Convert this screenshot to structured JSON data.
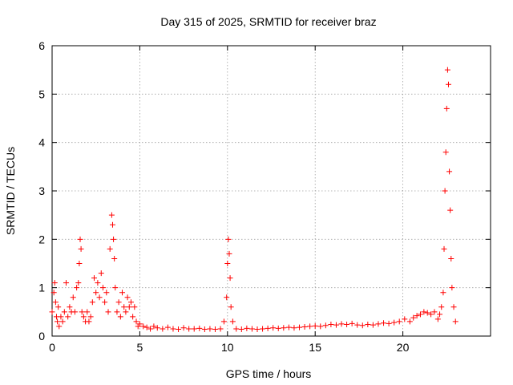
{
  "chart_data": {
    "type": "scatter",
    "title": "Day 315 of 2025, SRMTID for receiver braz",
    "xlabel": "GPS time / hours",
    "ylabel": "SRMTID / TECUs",
    "xlim": [
      0,
      25
    ],
    "ylim": [
      0,
      6
    ],
    "xticks": [
      0,
      5,
      10,
      15,
      20
    ],
    "yticks": [
      0,
      1,
      2,
      3,
      4,
      5,
      6
    ],
    "grid": true,
    "marker": "+",
    "series": [
      {
        "name": "braz",
        "color": "#ff0000",
        "x": [
          0.0,
          0.1,
          0.15,
          0.2,
          0.25,
          0.3,
          0.35,
          0.4,
          0.5,
          0.6,
          0.7,
          0.8,
          0.9,
          1.0,
          1.1,
          1.2,
          1.3,
          1.4,
          1.5,
          1.55,
          1.6,
          1.65,
          1.7,
          1.8,
          1.9,
          2.0,
          2.1,
          2.2,
          2.3,
          2.4,
          2.5,
          2.6,
          2.7,
          2.8,
          2.9,
          3.0,
          3.1,
          3.2,
          3.3,
          3.4,
          3.45,
          3.5,
          3.55,
          3.6,
          3.7,
          3.8,
          3.9,
          4.0,
          4.1,
          4.2,
          4.3,
          4.4,
          4.5,
          4.6,
          4.7,
          4.8,
          4.9,
          5.0,
          5.2,
          5.4,
          5.6,
          5.8,
          6.0,
          6.3,
          6.6,
          6.9,
          7.2,
          7.5,
          7.8,
          8.1,
          8.4,
          8.7,
          9.0,
          9.3,
          9.6,
          9.8,
          9.95,
          10.0,
          10.05,
          10.1,
          10.15,
          10.2,
          10.3,
          10.5,
          10.8,
          11.1,
          11.4,
          11.7,
          12.0,
          12.3,
          12.6,
          12.9,
          13.2,
          13.5,
          13.8,
          14.1,
          14.4,
          14.7,
          15.0,
          15.3,
          15.6,
          15.9,
          16.2,
          16.5,
          16.8,
          17.1,
          17.4,
          17.7,
          18.0,
          18.3,
          18.6,
          18.9,
          19.2,
          19.5,
          19.8,
          20.1,
          20.4,
          20.6,
          20.8,
          21.0,
          21.2,
          21.4,
          21.6,
          21.8,
          22.0,
          22.1,
          22.2,
          22.3,
          22.35,
          22.4,
          22.45,
          22.5,
          22.55,
          22.6,
          22.65,
          22.7,
          22.75,
          22.8,
          22.9,
          23.0
        ],
        "y": [
          0.5,
          0.9,
          1.1,
          0.7,
          0.4,
          0.3,
          0.6,
          0.2,
          0.4,
          0.3,
          0.5,
          1.1,
          0.4,
          0.6,
          0.5,
          0.8,
          0.5,
          1.0,
          1.1,
          1.5,
          2.0,
          1.8,
          0.5,
          0.4,
          0.3,
          0.5,
          0.3,
          0.4,
          0.7,
          1.2,
          0.9,
          1.1,
          0.8,
          1.3,
          1.0,
          0.7,
          0.9,
          0.5,
          1.8,
          2.5,
          2.3,
          2.0,
          1.6,
          1.0,
          0.5,
          0.7,
          0.4,
          0.9,
          0.6,
          0.5,
          0.8,
          0.6,
          0.7,
          0.4,
          0.6,
          0.3,
          0.2,
          0.25,
          0.2,
          0.18,
          0.15,
          0.2,
          0.17,
          0.15,
          0.18,
          0.15,
          0.14,
          0.17,
          0.15,
          0.15,
          0.16,
          0.14,
          0.15,
          0.14,
          0.15,
          0.3,
          0.8,
          1.5,
          2.0,
          1.7,
          1.2,
          0.6,
          0.3,
          0.15,
          0.14,
          0.16,
          0.15,
          0.14,
          0.15,
          0.16,
          0.17,
          0.16,
          0.17,
          0.18,
          0.17,
          0.18,
          0.19,
          0.2,
          0.21,
          0.2,
          0.22,
          0.24,
          0.23,
          0.25,
          0.24,
          0.26,
          0.23,
          0.22,
          0.24,
          0.23,
          0.25,
          0.27,
          0.26,
          0.28,
          0.3,
          0.35,
          0.3,
          0.38,
          0.42,
          0.45,
          0.5,
          0.48,
          0.45,
          0.5,
          0.35,
          0.45,
          0.6,
          0.9,
          1.8,
          3.0,
          3.8,
          4.7,
          5.5,
          5.2,
          3.4,
          2.6,
          1.6,
          1.0,
          0.6,
          0.3
        ]
      }
    ]
  }
}
